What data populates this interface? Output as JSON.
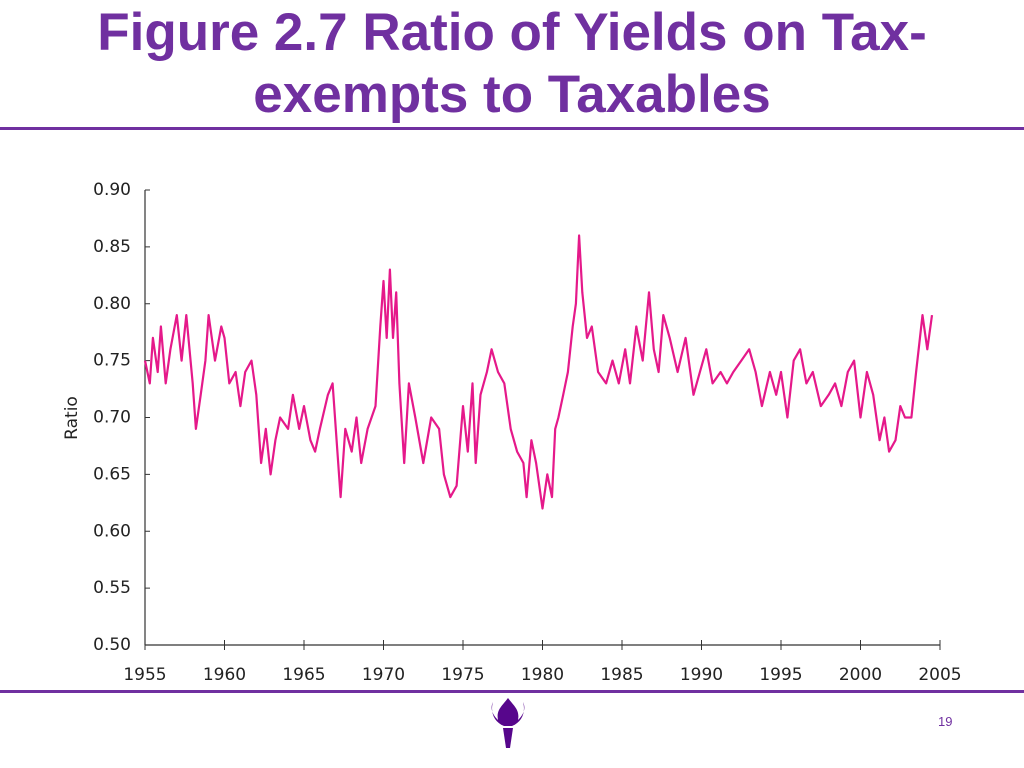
{
  "slide_number": "19",
  "chart_data": {
    "type": "line",
    "title": "Figure 2.7 Ratio of Yields on Tax-exempts to Taxables",
    "y_label": "Ratio",
    "xlim": [
      1955,
      2005
    ],
    "xticks": [
      1955,
      1960,
      1965,
      1970,
      1975,
      1980,
      1985,
      1990,
      1995,
      2000,
      2005
    ],
    "ylim": [
      0.5,
      0.9
    ],
    "yticks": [
      {
        "value": 0.5,
        "label": "0.50"
      },
      0.55,
      {
        "value": 0.6,
        "label": "0.60"
      },
      0.65,
      {
        "value": 0.7,
        "label": "0.70"
      },
      0.75,
      {
        "value": 0.8,
        "label": "0.80"
      },
      0.85,
      {
        "value": 0.9,
        "label": "0.90"
      }
    ],
    "grid": false,
    "series": [
      {
        "color": "#e5198a",
        "x": [
          1955.0,
          1955.3,
          1955.5,
          1955.8,
          1956.0,
          1956.3,
          1956.6,
          1957.0,
          1957.3,
          1957.6,
          1958.0,
          1958.2,
          1958.5,
          1958.8,
          1959.0,
          1959.4,
          1959.8,
          1960.0,
          1960.3,
          1960.7,
          1961.0,
          1961.3,
          1961.7,
          1962.0,
          1962.3,
          1962.6,
          1962.9,
          1963.2,
          1963.5,
          1964.0,
          1964.3,
          1964.7,
          1965.0,
          1965.4,
          1965.7,
          1966.0,
          1966.5,
          1966.8,
          1967.0,
          1967.3,
          1967.6,
          1968.0,
          1968.3,
          1968.6,
          1969.0,
          1969.5,
          1969.8,
          1970.0,
          1970.2,
          1970.4,
          1970.6,
          1970.8,
          1971.0,
          1971.3,
          1971.6,
          1972.0,
          1972.5,
          1973.0,
          1973.5,
          1973.8,
          1974.2,
          1974.6,
          1975.0,
          1975.3,
          1975.6,
          1975.8,
          1976.1,
          1976.5,
          1976.8,
          1977.2,
          1977.6,
          1978.0,
          1978.4,
          1978.8,
          1979.0,
          1979.3,
          1979.6,
          1980.0,
          1980.3,
          1980.6,
          1980.8,
          1981.0,
          1981.3,
          1981.6,
          1981.9,
          1982.1,
          1982.3,
          1982.5,
          1982.8,
          1983.1,
          1983.5,
          1984.0,
          1984.4,
          1984.8,
          1985.2,
          1985.5,
          1985.9,
          1986.3,
          1986.7,
          1987.0,
          1987.3,
          1987.6,
          1988.0,
          1988.5,
          1989.0,
          1989.5,
          1989.9,
          1990.3,
          1990.7,
          1991.2,
          1991.6,
          1992.0,
          1992.5,
          1993.0,
          1993.4,
          1993.8,
          1994.3,
          1994.7,
          1995.0,
          1995.4,
          1995.8,
          1996.2,
          1996.6,
          1997.0,
          1997.5,
          1998.0,
          1998.4,
          1998.8,
          1999.2,
          1999.6,
          2000.0,
          2000.4,
          2000.8,
          2001.2,
          2001.5,
          2001.8,
          2002.2,
          2002.5,
          2002.8,
          2003.2,
          2003.5,
          2003.9,
          2004.2,
          2004.5
        ],
        "values": [
          0.75,
          0.73,
          0.77,
          0.74,
          0.78,
          0.73,
          0.76,
          0.79,
          0.75,
          0.79,
          0.73,
          0.69,
          0.72,
          0.75,
          0.79,
          0.75,
          0.78,
          0.77,
          0.73,
          0.74,
          0.71,
          0.74,
          0.75,
          0.72,
          0.66,
          0.69,
          0.65,
          0.68,
          0.7,
          0.69,
          0.72,
          0.69,
          0.71,
          0.68,
          0.67,
          0.69,
          0.72,
          0.73,
          0.69,
          0.63,
          0.69,
          0.67,
          0.7,
          0.66,
          0.69,
          0.71,
          0.78,
          0.82,
          0.77,
          0.83,
          0.77,
          0.81,
          0.73,
          0.66,
          0.73,
          0.7,
          0.66,
          0.7,
          0.69,
          0.65,
          0.63,
          0.64,
          0.71,
          0.67,
          0.73,
          0.66,
          0.72,
          0.74,
          0.76,
          0.74,
          0.73,
          0.69,
          0.67,
          0.66,
          0.63,
          0.68,
          0.66,
          0.62,
          0.65,
          0.63,
          0.69,
          0.7,
          0.72,
          0.74,
          0.78,
          0.8,
          0.86,
          0.81,
          0.77,
          0.78,
          0.74,
          0.73,
          0.75,
          0.73,
          0.76,
          0.73,
          0.78,
          0.75,
          0.81,
          0.76,
          0.74,
          0.79,
          0.77,
          0.74,
          0.77,
          0.72,
          0.74,
          0.76,
          0.73,
          0.74,
          0.73,
          0.74,
          0.75,
          0.76,
          0.74,
          0.71,
          0.74,
          0.72,
          0.74,
          0.7,
          0.75,
          0.76,
          0.73,
          0.74,
          0.71,
          0.72,
          0.73,
          0.71,
          0.74,
          0.75,
          0.7,
          0.74,
          0.72,
          0.68,
          0.7,
          0.67,
          0.68,
          0.71,
          0.7,
          0.7,
          0.74,
          0.79,
          0.76,
          0.79
        ]
      }
    ]
  }
}
